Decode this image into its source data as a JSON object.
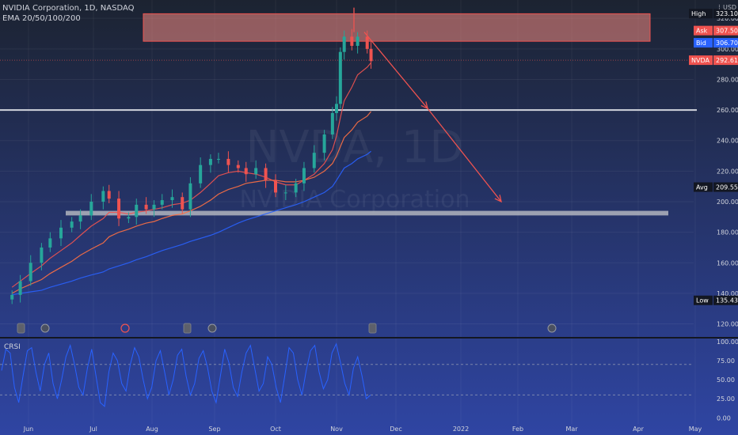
{
  "header": {
    "symbol_line": "NVIDIA Corporation, 1D, NASDAQ",
    "indicator_line": "EMA 20/50/100/200",
    "currency": "USD"
  },
  "watermark": {
    "symbol": "NVDA, 1D",
    "name": "NVIDIA Corporation"
  },
  "colors": {
    "bg_top": "#1c2331",
    "bg_bottom": "#2f45a3",
    "up": "#26a69a",
    "down": "#ef5350",
    "ema20": "#ef5350",
    "ema50": "#ff7043",
    "ema200": "#2962ff",
    "crsi": "#2962ff",
    "annotation": "#ef5350",
    "zone_fill": "#f28b82",
    "support": "#b2b5be"
  },
  "chart_data": [
    {
      "type": "line",
      "title": "NVIDIA Corporation, 1D, NASDAQ",
      "x_ticks": [
        "Jun",
        "Jul",
        "Aug",
        "Sep",
        "Oct",
        "Nov",
        "Dec",
        "2022",
        "Feb",
        "Mar",
        "Apr",
        "May"
      ],
      "y_ticks": [
        120,
        140,
        160,
        180,
        200,
        220,
        240,
        260,
        280,
        300,
        320
      ],
      "ylim": [
        112,
        332
      ],
      "series": [
        {
          "name": "NVDA",
          "dates": [
            "May 24",
            "May 28",
            "Jun 2",
            "Jun 7",
            "Jun 11",
            "Jun 16",
            "Jun 21",
            "Jun 25",
            "Jun 30",
            "Jul 6",
            "Jul 9",
            "Jul 14",
            "Jul 19",
            "Jul 23",
            "Jul 28",
            "Aug 2",
            "Aug 6",
            "Aug 11",
            "Aug 16",
            "Aug 20",
            "Aug 25",
            "Aug 30",
            "Sep 3",
            "Sep 8",
            "Sep 13",
            "Sep 17",
            "Sep 22",
            "Sep 27",
            "Oct 1",
            "Oct 6",
            "Oct 11",
            "Oct 15",
            "Oct 20",
            "Oct 25",
            "Oct 29",
            "Nov 1",
            "Nov 3",
            "Nov 5",
            "Nov 9",
            "Nov 12",
            "Nov 17",
            "Nov 19"
          ],
          "close": [
            139,
            148,
            160,
            170,
            176,
            183,
            187,
            191,
            200,
            207,
            202,
            189,
            190,
            198,
            195,
            198,
            201,
            203,
            195,
            212,
            224,
            228,
            228,
            224,
            222,
            218,
            222,
            214,
            206,
            206,
            212,
            222,
            232,
            244,
            258,
            264,
            298,
            308,
            302,
            308,
            300,
            292
          ]
        },
        {
          "name": "EMA 20",
          "close": [
            144,
            148,
            153,
            158,
            163,
            168,
            173,
            178,
            184,
            189,
            193,
            193,
            192,
            193,
            194,
            195,
            196,
            198,
            199,
            201,
            206,
            212,
            217,
            219,
            220,
            219,
            218,
            216,
            213,
            211,
            211,
            214,
            218,
            225,
            234,
            243,
            255,
            266,
            275,
            283,
            288,
            291
          ]
        },
        {
          "name": "EMA 50",
          "close": [
            140,
            143,
            146,
            149,
            153,
            157,
            161,
            165,
            169,
            173,
            177,
            180,
            182,
            184,
            186,
            187,
            189,
            191,
            192,
            194,
            197,
            201,
            205,
            208,
            210,
            212,
            213,
            214,
            214,
            213,
            213,
            214,
            216,
            220,
            225,
            230,
            236,
            242,
            247,
            252,
            256,
            259
          ]
        },
        {
          "name": "EMA 200",
          "close": [
            139,
            140,
            141,
            142,
            144,
            146,
            148,
            150,
            152,
            154,
            156,
            158,
            160,
            162,
            164,
            166,
            168,
            170,
            172,
            174,
            176,
            178,
            180,
            183,
            186,
            188,
            190,
            192,
            194,
            196,
            198,
            200,
            203,
            206,
            210,
            214,
            218,
            222,
            225,
            228,
            231,
            233
          ]
        }
      ],
      "price_tags": [
        {
          "label": "High",
          "value": "323.10"
        },
        {
          "label": "Ask",
          "value": "307.50"
        },
        {
          "label": "Bid",
          "value": "306.70"
        },
        {
          "label": "NVDA",
          "value": "292.61"
        },
        {
          "label": "Avg",
          "value": "209.55"
        },
        {
          "label": "Low",
          "value": "135.43"
        }
      ]
    },
    {
      "type": "line",
      "title": "CRSI",
      "y_ticks": [
        0.0,
        25.0,
        50.0,
        75.0,
        100.0
      ],
      "y_tick_labels": [
        "0.00",
        "25.00",
        "50.00",
        "75.00",
        "100.00"
      ],
      "bands": [
        30,
        70
      ],
      "ylim": [
        -8,
        104
      ],
      "series": [
        {
          "name": "CRSI",
          "values": [
            62,
            90,
            85,
            40,
            20,
            55,
            88,
            92,
            60,
            35,
            70,
            85,
            45,
            25,
            50,
            80,
            95,
            70,
            40,
            30,
            65,
            90,
            55,
            20,
            15,
            60,
            85,
            75,
            45,
            35,
            70,
            92,
            80,
            50,
            25,
            40,
            75,
            88,
            60,
            30,
            50,
            82,
            90,
            55,
            30,
            45,
            78,
            88,
            66,
            35,
            20,
            55,
            90,
            72,
            40,
            28,
            60,
            85,
            95,
            65,
            35,
            45,
            80,
            70,
            40,
            20,
            55,
            92,
            85,
            50,
            30,
            62,
            88,
            95,
            60,
            38,
            50,
            85,
            97,
            72,
            45,
            30,
            65,
            80,
            55,
            25,
            30
          ]
        }
      ]
    }
  ],
  "event_icons": [
    "dividend-icon",
    "earnings-icon",
    "split-icon",
    "dividend-icon",
    "earnings-icon",
    "dividend-icon",
    "earnings-icon"
  ]
}
